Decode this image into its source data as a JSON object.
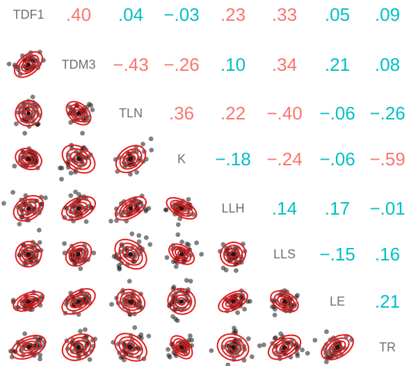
{
  "chart_data": {
    "type": "scatter",
    "variables": [
      "TDF1",
      "TDM3",
      "TLN",
      "K",
      "LLH",
      "LLS",
      "LE",
      "TR"
    ],
    "correlations": [
      [
        null,
        ".40",
        ".04",
        "−.03",
        ".23",
        ".33",
        ".05",
        ".09"
      ],
      [
        null,
        null,
        "−.43",
        "−.26",
        ".10",
        ".34",
        ".21",
        ".08"
      ],
      [
        null,
        null,
        null,
        ".36",
        ".22",
        "−.40",
        "−.06",
        "−.26"
      ],
      [
        null,
        null,
        null,
        null,
        "−.18",
        "−.24",
        "−.06",
        "−.59"
      ],
      [
        null,
        null,
        null,
        null,
        null,
        ".14",
        ".17",
        "−.01"
      ],
      [
        null,
        null,
        null,
        null,
        null,
        null,
        "−.15",
        ".16"
      ],
      [
        null,
        null,
        null,
        null,
        null,
        null,
        null,
        ".21"
      ],
      [
        null,
        null,
        null,
        null,
        null,
        null,
        null,
        null
      ]
    ],
    "colors": {
      "positive_significant": "#f8766d",
      "negative_significant": "#f8766d",
      "nonsignificant": "#00bfc4",
      "points": "#1a1a1a",
      "ellipse": "#e41a1c"
    },
    "cell_colors": [
      [
        null,
        "#f8766d",
        "#00bfc4",
        "#00bfc4",
        "#f8766d",
        "#f8766d",
        "#00bfc4",
        "#00bfc4"
      ],
      [
        null,
        null,
        "#f8766d",
        "#f8766d",
        "#00bfc4",
        "#f8766d",
        "#00bfc4",
        "#00bfc4"
      ],
      [
        null,
        null,
        null,
        "#f8766d",
        "#f8766d",
        "#f8766d",
        "#00bfc4",
        "#00bfc4"
      ],
      [
        null,
        null,
        null,
        null,
        "#00bfc4",
        "#f8766d",
        "#00bfc4",
        "#f8766d"
      ],
      [
        null,
        null,
        null,
        null,
        null,
        "#00bfc4",
        "#00bfc4",
        "#00bfc4"
      ],
      [
        null,
        null,
        null,
        null,
        null,
        null,
        "#00bfc4",
        "#00bfc4"
      ],
      [
        null,
        null,
        null,
        null,
        null,
        null,
        null,
        "#00bfc4"
      ],
      [
        null,
        null,
        null,
        null,
        null,
        null,
        null,
        null
      ]
    ]
  }
}
